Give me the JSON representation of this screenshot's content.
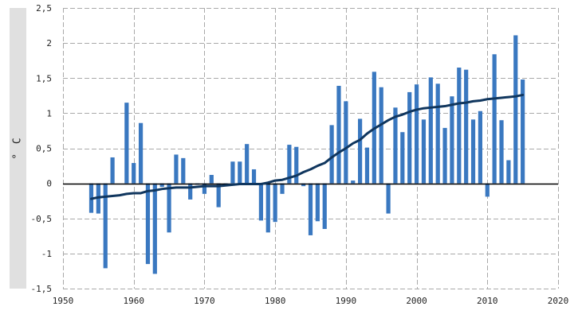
{
  "chart_data": {
    "type": "bar",
    "ylabel": "° C",
    "xlim": [
      1950,
      2020
    ],
    "ylim": [
      -1.5,
      2.5
    ],
    "xticks": [
      1950,
      1960,
      1970,
      1980,
      1990,
      2000,
      2010,
      2020
    ],
    "xtick_labels": [
      "1950",
      "1960",
      "1970",
      "1980",
      "1990",
      "2000",
      "2010",
      "2020"
    ],
    "yticks": [
      -1.5,
      -1,
      -0.5,
      0,
      0.5,
      1,
      1.5,
      2,
      2.5
    ],
    "ytick_labels": [
      "-1,5",
      "-1",
      "-0,5",
      "0",
      "0,5",
      "1",
      "1,5",
      "2",
      "2,5"
    ],
    "grid": true,
    "colors": {
      "bars": "#3a78c0",
      "line": "#10365e",
      "grid": "#a9a9a9",
      "zero": "#000000"
    },
    "series": [
      {
        "type": "bar",
        "x": [
          1954,
          1955,
          1956,
          1957,
          1958,
          1959,
          1960,
          1961,
          1962,
          1963,
          1964,
          1965,
          1966,
          1967,
          1968,
          1969,
          1970,
          1971,
          1972,
          1973,
          1974,
          1975,
          1976,
          1977,
          1978,
          1979,
          1980,
          1981,
          1982,
          1983,
          1984,
          1985,
          1986,
          1987,
          1988,
          1989,
          1990,
          1991,
          1992,
          1993,
          1994,
          1995,
          1996,
          1997,
          1998,
          1999,
          2000,
          2001,
          2002,
          2003,
          2004,
          2005,
          2006,
          2007,
          2008,
          2009,
          2010,
          2011,
          2012,
          2013,
          2014,
          2015
        ],
        "values": [
          -0.42,
          -0.43,
          -1.21,
          0.37,
          0.0,
          1.15,
          0.29,
          0.86,
          -1.15,
          -1.29,
          -0.05,
          -0.7,
          0.41,
          0.36,
          -0.23,
          -0.02,
          -0.15,
          0.12,
          -0.34,
          -0.02,
          0.31,
          0.31,
          0.56,
          0.2,
          -0.53,
          -0.7,
          -0.55,
          -0.15,
          0.55,
          0.52,
          -0.04,
          -0.74,
          -0.54,
          -0.65,
          0.83,
          1.39,
          1.17,
          0.04,
          0.92,
          0.51,
          1.59,
          1.37,
          -0.43,
          1.08,
          0.73,
          1.3,
          1.41,
          0.91,
          1.51,
          1.42,
          0.79,
          1.24,
          1.65,
          1.62,
          0.91,
          1.03,
          -0.19,
          1.84,
          0.9,
          0.33,
          2.11,
          1.48
        ]
      },
      {
        "type": "line",
        "x": [
          1954,
          1955,
          1956,
          1957,
          1958,
          1959,
          1960,
          1961,
          1962,
          1963,
          1964,
          1965,
          1966,
          1967,
          1968,
          1969,
          1970,
          1971,
          1972,
          1973,
          1974,
          1975,
          1976,
          1977,
          1978,
          1979,
          1980,
          1981,
          1982,
          1983,
          1984,
          1985,
          1986,
          1987,
          1988,
          1989,
          1990,
          1991,
          1992,
          1993,
          1994,
          1995,
          1996,
          1997,
          1998,
          1999,
          2000,
          2001,
          2002,
          2003,
          2004,
          2005,
          2006,
          2007,
          2008,
          2009,
          2010,
          2011,
          2012,
          2013,
          2014,
          2015
        ],
        "values": [
          -0.22,
          -0.2,
          -0.19,
          -0.18,
          -0.17,
          -0.15,
          -0.14,
          -0.14,
          -0.11,
          -0.1,
          -0.08,
          -0.07,
          -0.06,
          -0.06,
          -0.06,
          -0.05,
          -0.04,
          -0.04,
          -0.04,
          -0.03,
          -0.02,
          -0.01,
          -0.01,
          -0.01,
          -0.01,
          0.01,
          0.04,
          0.05,
          0.08,
          0.11,
          0.16,
          0.2,
          0.25,
          0.29,
          0.37,
          0.44,
          0.5,
          0.57,
          0.62,
          0.71,
          0.78,
          0.84,
          0.9,
          0.95,
          0.98,
          1.02,
          1.05,
          1.07,
          1.08,
          1.09,
          1.1,
          1.12,
          1.14,
          1.15,
          1.17,
          1.18,
          1.2,
          1.21,
          1.22,
          1.23,
          1.24,
          1.26
        ]
      }
    ]
  }
}
